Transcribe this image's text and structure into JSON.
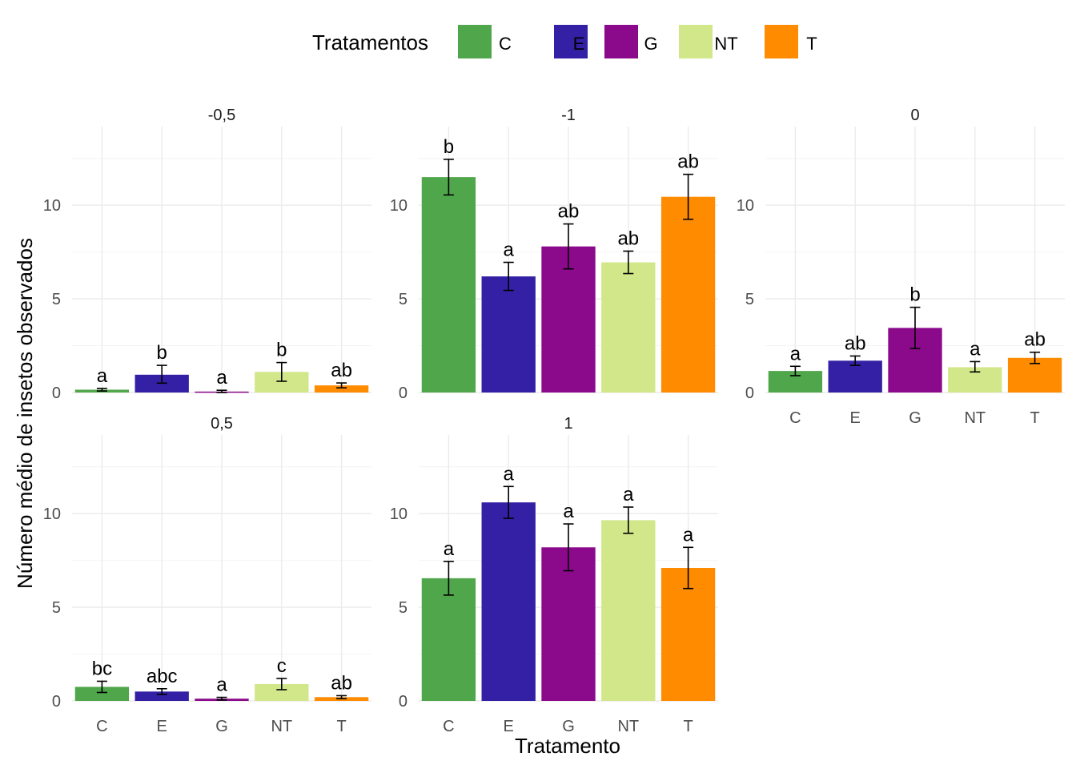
{
  "chart_data": {
    "type": "bar",
    "xlabel": "Tratamento",
    "ylabel": "Número médio de insetos observados",
    "legend": {
      "title": "Tratamentos",
      "position": "top",
      "entries": [
        {
          "name": "C",
          "color": "#50A64B"
        },
        {
          "name": "E",
          "color": "#3420A4"
        },
        {
          "name": "G",
          "color": "#8B0A8B"
        },
        {
          "name": "NT",
          "color": "#D2E78A"
        },
        {
          "name": "T",
          "color": "#FF8C00"
        }
      ]
    },
    "categories": [
      "C",
      "E",
      "G",
      "NT",
      "T"
    ],
    "ylim": [
      0,
      14.2
    ],
    "yticks": [
      0,
      5,
      10
    ],
    "grid": true,
    "panels": [
      {
        "label": "-0,5",
        "means": [
          0.15,
          0.95,
          0.05,
          1.1,
          0.38
        ],
        "lower": [
          0.08,
          0.5,
          0.0,
          0.6,
          0.25
        ],
        "upper": [
          0.22,
          1.45,
          0.12,
          1.6,
          0.51
        ],
        "letters": [
          "a",
          "b",
          "a",
          "b",
          "ab"
        ]
      },
      {
        "label": "-1",
        "means": [
          11.5,
          6.2,
          7.8,
          6.95,
          10.45
        ],
        "lower": [
          10.55,
          5.45,
          6.6,
          6.35,
          9.25
        ],
        "upper": [
          12.45,
          6.95,
          9.0,
          7.55,
          11.65
        ],
        "letters": [
          "b",
          "a",
          "ab",
          "ab",
          "ab"
        ]
      },
      {
        "label": "0",
        "means": [
          1.15,
          1.7,
          3.45,
          1.35,
          1.85
        ],
        "lower": [
          0.9,
          1.45,
          2.35,
          1.1,
          1.55
        ],
        "upper": [
          1.4,
          1.95,
          4.55,
          1.65,
          2.15
        ],
        "letters": [
          "a",
          "ab",
          "b",
          "a",
          "ab"
        ]
      },
      {
        "label": "0,5",
        "means": [
          0.75,
          0.5,
          0.12,
          0.9,
          0.2
        ],
        "lower": [
          0.45,
          0.35,
          0.05,
          0.6,
          0.12
        ],
        "upper": [
          1.05,
          0.65,
          0.19,
          1.2,
          0.28
        ],
        "letters": [
          "bc",
          "abc",
          "a",
          "c",
          "ab"
        ]
      },
      {
        "label": "1",
        "means": [
          6.55,
          10.6,
          8.2,
          9.65,
          7.1
        ],
        "lower": [
          5.65,
          9.75,
          6.95,
          8.95,
          6.0
        ],
        "upper": [
          7.45,
          11.45,
          9.45,
          10.35,
          8.2
        ],
        "letters": [
          "a",
          "a",
          "a",
          "a",
          "a"
        ]
      }
    ]
  }
}
